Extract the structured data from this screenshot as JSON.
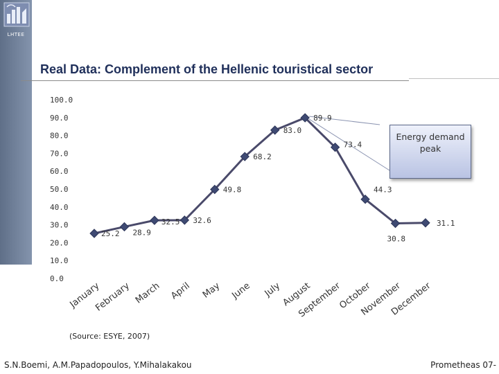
{
  "brand": {
    "label": "LHTEE"
  },
  "title": "Real Data: Complement of the Hellenic touristical sector",
  "callout": {
    "text": "Energy demand peak"
  },
  "source": "(Source: ESYE, 2007)",
  "footer": {
    "authors": "S.N.Boemi, A.M.Papadopoulos, Y.Mihalakakou",
    "right": "Prometheas 07-"
  },
  "colors": {
    "line": "#4a4a6a",
    "marker": "#3f4a73",
    "sidebar": "#6f7f99",
    "title": "#1f2f5a"
  },
  "chart_data": {
    "type": "line",
    "title": "",
    "xlabel": "",
    "ylabel": "",
    "ylim": [
      0,
      100
    ],
    "yticks": [
      "100.0",
      "90.0",
      "80.0",
      "70.0",
      "60.0",
      "50.0",
      "40.0",
      "30.0",
      "20.0",
      "10.0",
      "0.0"
    ],
    "categories": [
      "January",
      "February",
      "March",
      "April",
      "May",
      "June",
      "July",
      "August",
      "September",
      "October",
      "November",
      "December"
    ],
    "series": [
      {
        "name": "Complement",
        "points": [
          {
            "month": "January",
            "value": 25.2,
            "label": "25.2"
          },
          {
            "month": "February",
            "value": 28.9,
            "label": "28.9"
          },
          {
            "month": "March",
            "value": 32.5,
            "label": "32.5"
          },
          {
            "month": "April",
            "value": 32.6,
            "label": "32.6"
          },
          {
            "month": "May",
            "value": 49.8,
            "label": "49.8"
          },
          {
            "month": "June",
            "value": 68.2,
            "label": "68.2"
          },
          {
            "month": "July",
            "value": 83.0,
            "label": "83.0"
          },
          {
            "month": "August",
            "value": 89.9,
            "label": "89.9"
          },
          {
            "month": "September",
            "value": 73.4,
            "label": "73.4"
          },
          {
            "month": "October",
            "value": 44.3,
            "label": "44.3"
          },
          {
            "month": "November",
            "value": 30.8,
            "label": "30.8"
          },
          {
            "month": "December",
            "value": 31.1,
            "label": "31.1"
          }
        ]
      }
    ]
  }
}
